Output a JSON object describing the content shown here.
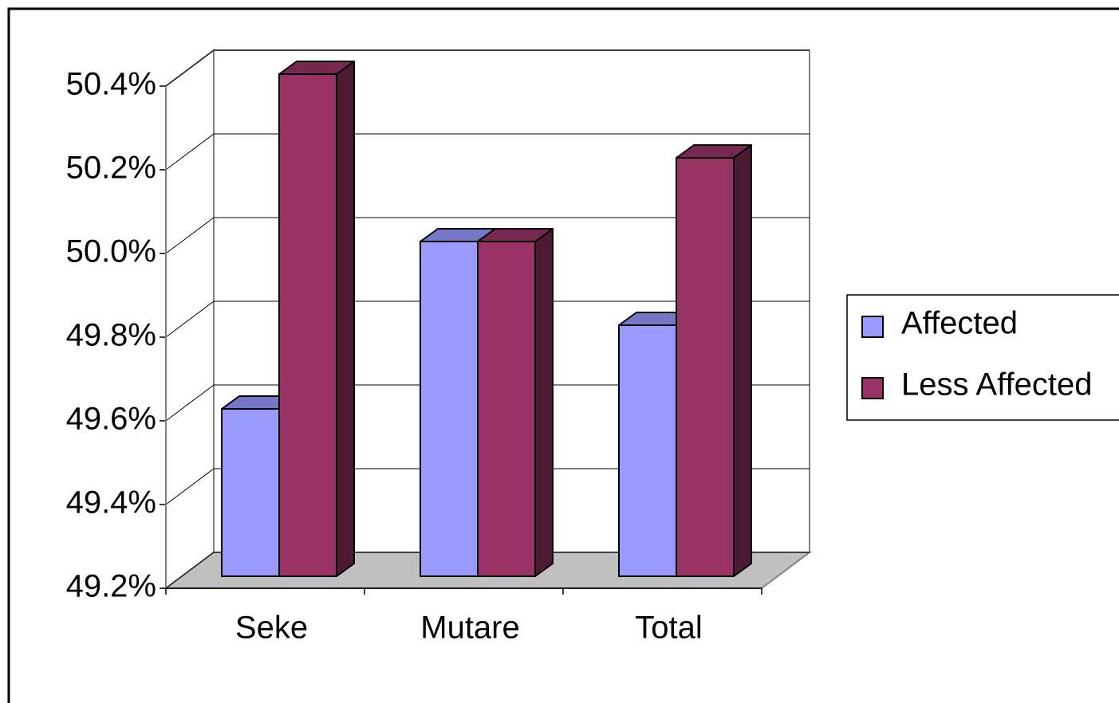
{
  "chart_data": {
    "type": "bar3d",
    "categories": [
      "Seke",
      "Mutare",
      "Total"
    ],
    "series": [
      {
        "name": "Affected",
        "color": "#9999ff",
        "values": [
          49.6,
          50.0,
          49.8
        ]
      },
      {
        "name": "Less Affected",
        "color": "#993366",
        "values": [
          50.4,
          50.0,
          50.2
        ]
      }
    ],
    "ylim": [
      49.2,
      50.4
    ],
    "yticks": [
      {
        "value": 49.2,
        "label": "49.2%"
      },
      {
        "value": 49.4,
        "label": "49.4%"
      },
      {
        "value": 49.6,
        "label": "49.6%"
      },
      {
        "value": 49.8,
        "label": "49.8%"
      },
      {
        "value": 50.0,
        "label": "50.0%"
      },
      {
        "value": 50.2,
        "label": "50.2%"
      },
      {
        "value": 50.4,
        "label": "50.4%"
      }
    ],
    "grid": true,
    "legend": "right"
  }
}
